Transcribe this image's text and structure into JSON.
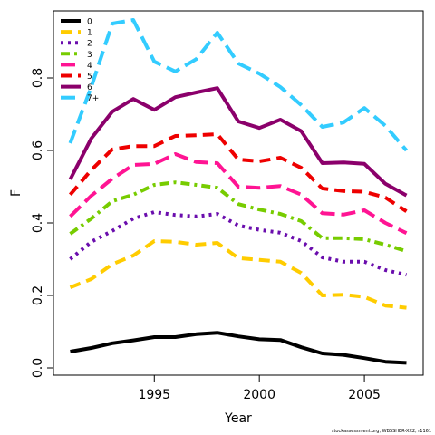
{
  "chart_data": {
    "type": "line",
    "xlabel": "Year",
    "ylabel": "F",
    "xlim": [
      1990.2,
      2007.8
    ],
    "ylim": [
      -0.02,
      0.985
    ],
    "x_ticks": [
      1995,
      2000,
      2005
    ],
    "y_ticks": [
      0.0,
      0.2,
      0.4,
      0.6,
      0.8
    ],
    "y_tick_labels": [
      "0.0",
      "0.2",
      "0.4",
      "0.6",
      "0.8"
    ],
    "grid": false,
    "legend_position": "top-left",
    "x": [
      1991,
      1992,
      1993,
      1994,
      1995,
      1996,
      1997,
      1998,
      1999,
      2000,
      2001,
      2002,
      2003,
      2004,
      2005,
      2006,
      2007
    ],
    "series": [
      {
        "name": "0",
        "color": "#000000",
        "dash": "solid",
        "values": [
          0.045,
          0.055,
          0.068,
          0.076,
          0.085,
          0.085,
          0.093,
          0.097,
          0.087,
          0.079,
          0.077,
          0.057,
          0.04,
          0.036,
          0.027,
          0.017,
          0.014
        ]
      },
      {
        "name": "1",
        "color": "#FFCC00",
        "dash": "dashed",
        "values": [
          0.222,
          0.245,
          0.286,
          0.31,
          0.35,
          0.348,
          0.34,
          0.345,
          0.303,
          0.298,
          0.293,
          0.262,
          0.2,
          0.202,
          0.196,
          0.172,
          0.166
        ]
      },
      {
        "name": "2",
        "color": "#6A0DAD",
        "dash": "dotted",
        "values": [
          0.3,
          0.348,
          0.378,
          0.412,
          0.43,
          0.422,
          0.418,
          0.425,
          0.393,
          0.381,
          0.373,
          0.35,
          0.305,
          0.293,
          0.293,
          0.27,
          0.257
        ]
      },
      {
        "name": "3",
        "color": "#77CC00",
        "dash": "dashdot",
        "values": [
          0.37,
          0.412,
          0.46,
          0.478,
          0.505,
          0.512,
          0.505,
          0.497,
          0.452,
          0.437,
          0.425,
          0.405,
          0.358,
          0.358,
          0.355,
          0.34,
          0.322
        ]
      },
      {
        "name": "4",
        "color": "#FF1493",
        "dash": "longdash",
        "values": [
          0.418,
          0.475,
          0.522,
          0.56,
          0.563,
          0.59,
          0.568,
          0.565,
          0.5,
          0.497,
          0.502,
          0.478,
          0.427,
          0.423,
          0.435,
          0.4,
          0.372
        ]
      },
      {
        "name": "5",
        "color": "#EE0000",
        "dash": "dashed",
        "values": [
          0.478,
          0.546,
          0.603,
          0.612,
          0.612,
          0.64,
          0.642,
          0.645,
          0.575,
          0.57,
          0.58,
          0.552,
          0.495,
          0.488,
          0.486,
          0.47,
          0.432
        ]
      },
      {
        "name": "6",
        "color": "#8B006B",
        "dash": "solid",
        "values": [
          0.52,
          0.633,
          0.707,
          0.742,
          0.712,
          0.747,
          0.76,
          0.772,
          0.68,
          0.662,
          0.685,
          0.653,
          0.565,
          0.567,
          0.563,
          0.508,
          0.476
        ]
      },
      {
        "name": "7+",
        "color": "#33CCFF",
        "dash": "longdash",
        "values": [
          0.62,
          0.775,
          0.95,
          0.96,
          0.845,
          0.818,
          0.852,
          0.925,
          0.84,
          0.812,
          0.775,
          0.725,
          0.665,
          0.677,
          0.717,
          0.668,
          0.6
        ]
      }
    ]
  },
  "footnote": "stockassessment.org, WBSSHER-XX2, r1161"
}
